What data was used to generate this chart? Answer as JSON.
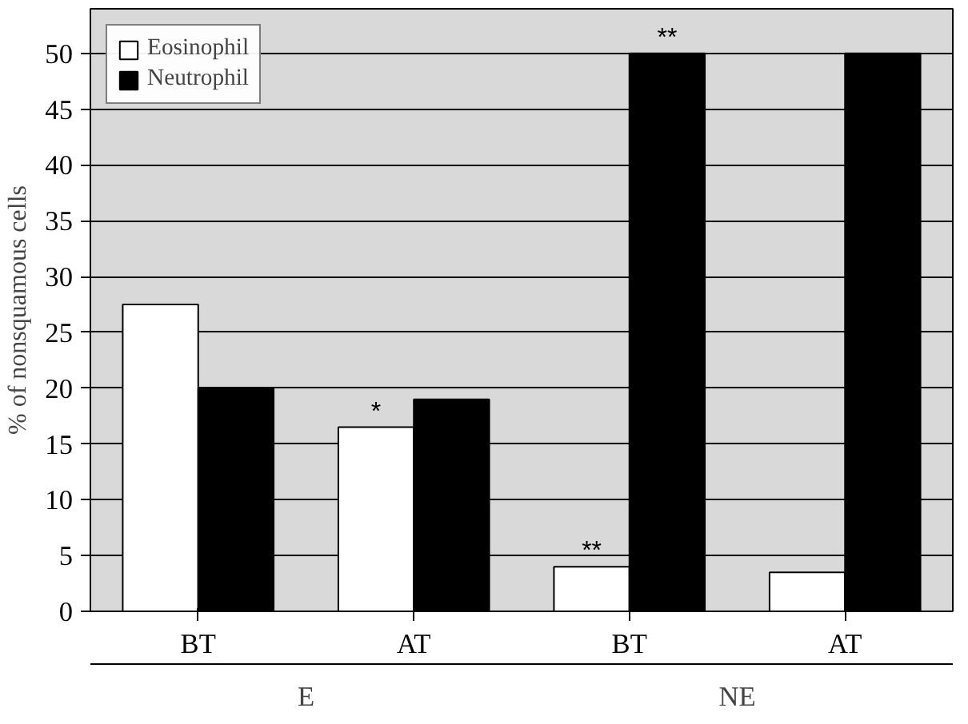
{
  "chart_data": {
    "type": "bar",
    "ylabel": "% of nonsquamous cells",
    "categories": [
      "BT",
      "AT",
      "BT",
      "AT"
    ],
    "series": [
      {
        "name": "Eosinophil",
        "color": "#ffffff",
        "values": [
          27.5,
          16.5,
          4,
          3.5
        ],
        "value_labels": [
          null,
          "*",
          "**",
          null
        ]
      },
      {
        "name": "Neutrophil",
        "color": "#000000",
        "values": [
          20,
          19,
          50,
          50
        ],
        "value_labels": [
          null,
          null,
          "**",
          null
        ]
      }
    ],
    "annotations": [
      "E",
      "NE"
    ],
    "ylim": [
      0,
      54
    ],
    "yticks": [
      0,
      5,
      10,
      15,
      20,
      25,
      30,
      35,
      40,
      45,
      50
    ],
    "grid": "y",
    "legend": "top left"
  }
}
